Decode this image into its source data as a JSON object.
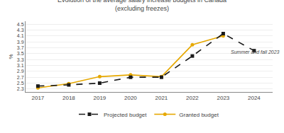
{
  "chart_data": {
    "type": "line",
    "title": "Evolution of the average salary increase budgets in Canada",
    "subtitle": "(excluding freezes)",
    "ylabel": "%",
    "xlim": [
      2016.6,
      2024.6
    ],
    "ylim": [
      2.2,
      4.6
    ],
    "xticks": [
      2017,
      2018,
      2019,
      2020,
      2021,
      2022,
      2023,
      2024
    ],
    "yticks": [
      2.3,
      2.5,
      2.7,
      2.9,
      3.1,
      3.3,
      3.5,
      3.7,
      3.9,
      4.1,
      4.3,
      4.5
    ],
    "grid": "y",
    "legend": "bottom",
    "series": [
      {
        "name": "Granted budget",
        "color": "#e6a800",
        "marker": "circle",
        "line_style": "solid",
        "x": [
          2017,
          2018,
          2019,
          2020,
          2021,
          2022,
          2023
        ],
        "values": [
          2.34,
          2.48,
          2.72,
          2.78,
          2.72,
          3.8,
          4.1
        ]
      },
      {
        "name": "Projected budget",
        "color": "#1a1a1a",
        "marker": "square",
        "line_style": "dashed",
        "x": [
          2017,
          2018,
          2019,
          2020,
          2021,
          2022,
          2023,
          2024
        ],
        "values": [
          2.4,
          2.44,
          2.5,
          2.7,
          2.7,
          3.42,
          4.18,
          3.6
        ]
      }
    ],
    "annotations": [
      {
        "text": "Summer and fall 2023",
        "x": 2023.2,
        "y": 3.55
      }
    ]
  }
}
